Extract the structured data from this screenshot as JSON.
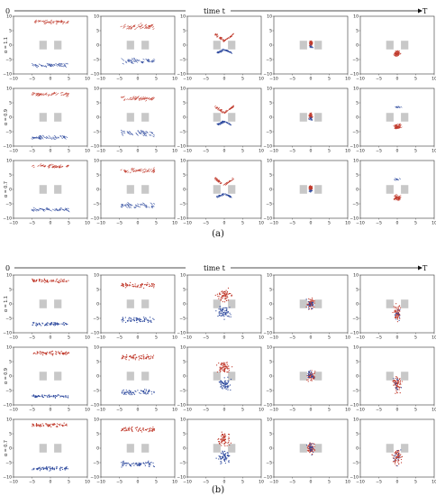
{
  "figure": {
    "colors": {
      "red": "#c0392b",
      "blue": "#2e4a9e",
      "obstacle": "#c8c8c8",
      "axis": "#333333"
    },
    "groups": [
      {
        "label": "(a)",
        "time_axis": {
          "start": "0",
          "middle": "time t",
          "end": "T"
        },
        "row_labels": [
          "α = 1.1",
          "α = 0.9",
          "α = 0.7"
        ],
        "style": "aligned"
      },
      {
        "label": "(b)",
        "time_axis": {
          "start": "0",
          "middle": "time t",
          "end": "T"
        },
        "row_labels": [
          "α = 1.1",
          "α = 0.9",
          "α = 0.7"
        ],
        "style": "diffuse"
      }
    ]
  },
  "chart_data": {
    "type": "scatter",
    "xlim": [
      -10,
      10
    ],
    "ylim": [
      -10,
      10
    ],
    "xticks": [
      "−10",
      "−5",
      "0",
      "5",
      "10"
    ],
    "yticks": [
      "10",
      "5",
      "0",
      "−5",
      "−10"
    ],
    "obstacles": [
      {
        "x": [
          -3,
          -1
        ],
        "y": [
          -1.5,
          1.5
        ]
      },
      {
        "x": [
          1,
          3
        ],
        "y": [
          -1.5,
          1.5
        ]
      }
    ],
    "series": [
      {
        "color": "red",
        "initial_center": [
          0,
          8
        ]
      },
      {
        "color": "blue",
        "initial_center": [
          0,
          -7
        ]
      }
    ],
    "snapshots_per_row": 5
  }
}
